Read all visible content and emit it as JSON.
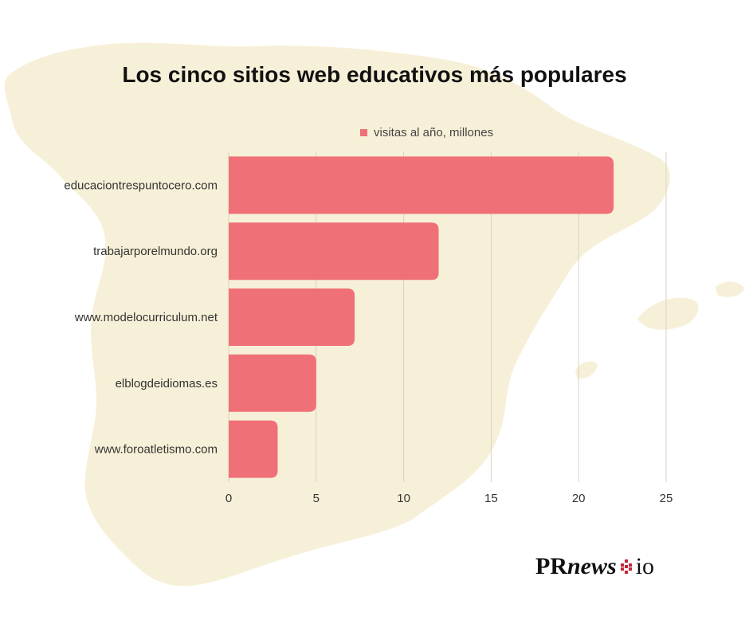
{
  "colors": {
    "bar": "#f07078",
    "map": "#f7f0d8",
    "grid": "#d8d2c0",
    "text": "#333333",
    "background": "#ffffff"
  },
  "brand": {
    "pr": "PR",
    "news": "news",
    "io": "io"
  },
  "chart_data": {
    "type": "bar",
    "orientation": "horizontal",
    "title": "Los cinco sitios web educativos más populares",
    "legend": "top",
    "grid": true,
    "categories": [
      "educaciontrespuntocero.com",
      "trabajarporelmundo.org",
      "www.modelocurriculum.net",
      "elblogdeidiomas.es",
      "www.foroatletismo.com"
    ],
    "series": [
      {
        "name": "visitas al año, millones",
        "values": [
          22,
          12,
          7.2,
          5,
          2.8
        ]
      }
    ],
    "xlim": [
      0,
      25
    ],
    "xticks": [
      "0",
      "5",
      "10",
      "15",
      "20",
      "25"
    ],
    "xlabel": "",
    "ylabel": ""
  }
}
